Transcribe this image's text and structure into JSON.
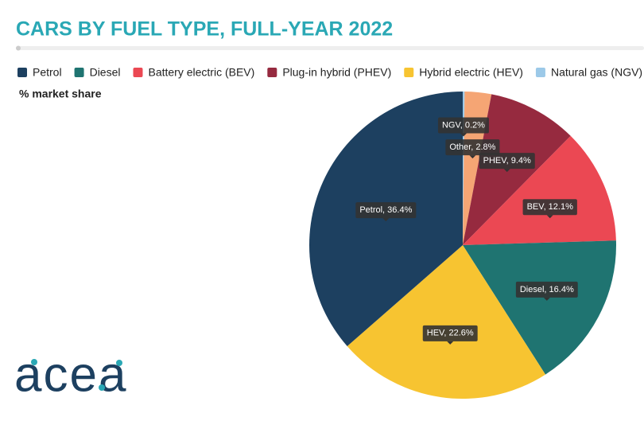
{
  "chart_data": {
    "type": "pie",
    "title": "CARS BY FUEL TYPE, FULL-YEAR 2022",
    "subtitle": "% market share",
    "logo": "acea",
    "categories": [
      "Petrol",
      "Diesel",
      "Battery electric (BEV)",
      "Plug-in hybrid (PHEV)",
      "Hybrid electric (HEV)",
      "Natural gas (NGV)",
      "Other"
    ],
    "values": [
      36.4,
      16.4,
      12.1,
      9.4,
      22.6,
      0.2,
      2.8
    ],
    "value_labels": [
      "Petrol, 36.4%",
      "Diesel, 16.4%",
      "BEV, 12.1%",
      "PHEV, 9.4%",
      "HEV, 22.6%",
      "NGV, 0.2%",
      "Other, 2.8%"
    ],
    "colors": [
      "#1d4060",
      "#1f7471",
      "#eb4853",
      "#962a3f",
      "#f7c431",
      "#9cc9e8",
      "#f5a574"
    ],
    "legend": "top"
  }
}
